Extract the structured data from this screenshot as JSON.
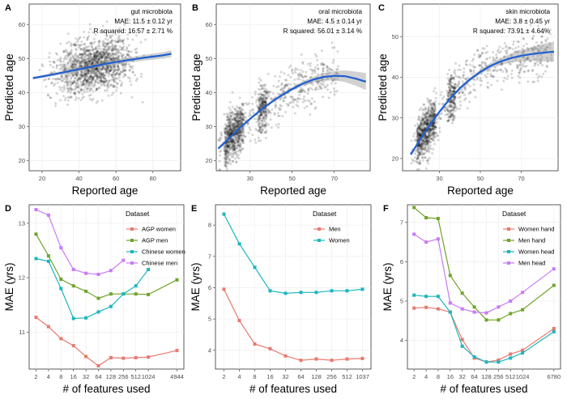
{
  "chart_data": [
    {
      "panel": "A",
      "type": "scatter",
      "annotation": [
        "gut microbiota",
        "MAE: 11.5 ± 0.12 yr",
        "R squared: 16.57 ± 2.71 %"
      ],
      "xlabel": "Reported age",
      "ylabel": "Predicted age",
      "xlim": [
        13,
        95
      ],
      "ylim": [
        17,
        66
      ],
      "xticks": [
        20,
        40,
        60,
        80
      ],
      "yticks": [
        20,
        30,
        40,
        50,
        60
      ],
      "trend": {
        "x": [
          15,
          25,
          35,
          45,
          55,
          65,
          75,
          85,
          90
        ],
        "y": [
          44.2,
          45.2,
          46.3,
          47.4,
          48.5,
          49.4,
          50.2,
          50.9,
          51.4
        ]
      },
      "cloud": {
        "x_range": [
          18,
          90
        ],
        "x_center": 48,
        "y_spread": 5.5,
        "count": 1400
      }
    },
    {
      "panel": "B",
      "type": "scatter",
      "annotation": [
        "oral microbiota",
        "MAE: 4.5 ± 0.14 yr",
        "R squared: 56.01 ± 3.14 %"
      ],
      "xlabel": "Reported age",
      "ylabel": "Predicted age",
      "xlim": [
        14,
        87
      ],
      "ylim": [
        17,
        66
      ],
      "xticks": [
        30,
        50,
        70
      ],
      "yticks": [
        20,
        30,
        40,
        50,
        60
      ],
      "trend": {
        "x": [
          15,
          20,
          25,
          30,
          35,
          40,
          45,
          50,
          55,
          60,
          65,
          70,
          75,
          80,
          85
        ],
        "y": [
          23.5,
          26.5,
          29.5,
          32.2,
          34.8,
          37.1,
          39.2,
          41,
          42.6,
          43.8,
          44.6,
          44.9,
          44.8,
          44.1,
          43.2
        ]
      },
      "cloud": {
        "x_range": [
          15,
          72
        ],
        "x_center": 24,
        "y_spread": 5.0,
        "count": 1300
      }
    },
    {
      "panel": "C",
      "type": "scatter",
      "annotation": [
        "skin microbiota",
        "MAE: 3.8 ± 0.45 yr",
        "R squared: 73.91 ± 4.64%"
      ],
      "xlabel": "Reported age",
      "ylabel": "Predicted age",
      "xlim": [
        12,
        88
      ],
      "ylim": [
        17,
        58
      ],
      "xticks": [
        30,
        50,
        70
      ],
      "yticks": [
        20,
        30,
        40,
        50
      ],
      "trend": {
        "x": [
          16,
          20,
          25,
          30,
          35,
          40,
          45,
          50,
          55,
          60,
          65,
          70,
          75,
          80,
          86
        ],
        "y": [
          21,
          24.2,
          28,
          31.5,
          34.6,
          37.3,
          39.5,
          41.3,
          42.8,
          43.9,
          44.7,
          45.3,
          45.7,
          46,
          46.3
        ]
      },
      "cloud": {
        "x_range": [
          16,
          85
        ],
        "x_center": 22,
        "y_spread": 4.0,
        "count": 1300
      }
    },
    {
      "panel": "D",
      "type": "line",
      "xlabel": "# of features used",
      "ylabel": "MAE (yrs)",
      "categories": [
        "2",
        "4",
        "8",
        "16",
        "32",
        "64",
        "128",
        "256",
        "512",
        "1024",
        "4944"
      ],
      "cat_pos": [
        1,
        2,
        3,
        4,
        5,
        6,
        7,
        8,
        9,
        10,
        12.3
      ],
      "ylim": [
        10.32,
        13.34
      ],
      "yticks": [
        11,
        12,
        13
      ],
      "legend_title": "Dataset",
      "series": [
        {
          "name": "AGP women",
          "color": "#e8796d",
          "values": [
            11.27,
            11.1,
            10.88,
            10.75,
            10.55,
            10.38,
            10.53,
            10.52,
            10.53,
            10.54,
            10.66
          ]
        },
        {
          "name": "AGP men",
          "color": "#6fa52a",
          "values": [
            12.8,
            12.4,
            11.97,
            11.85,
            11.75,
            11.62,
            11.7,
            11.7,
            11.7,
            11.69,
            11.96
          ]
        },
        {
          "name": "Chinese women",
          "color": "#1db6bf",
          "values": [
            12.35,
            12.3,
            11.8,
            11.25,
            11.26,
            11.37,
            11.47,
            11.7,
            11.85,
            12.15,
            null
          ]
        },
        {
          "name": "Chinese men",
          "color": "#c77bf5",
          "values": [
            13.25,
            13.15,
            12.55,
            12.15,
            12.08,
            12.06,
            12.13,
            12.32,
            null,
            null,
            null
          ]
        }
      ]
    },
    {
      "panel": "E",
      "type": "line",
      "xlabel": "# of features used",
      "ylabel": "MAE (yrs)",
      "categories": [
        "2",
        "4",
        "8",
        "16",
        "32",
        "64",
        "128",
        "256",
        "512",
        "1037"
      ],
      "cat_pos": [
        1,
        2,
        3,
        4,
        5,
        6,
        7,
        8,
        9,
        10
      ],
      "ylim": [
        3.4,
        8.65
      ],
      "yticks": [
        4,
        5,
        6,
        7,
        8
      ],
      "legend_title": "Dataset",
      "series": [
        {
          "name": "Men",
          "color": "#e8796d",
          "values": [
            5.95,
            4.95,
            4.2,
            4.05,
            3.82,
            3.68,
            3.72,
            3.68,
            3.72,
            3.74
          ]
        },
        {
          "name": "Women",
          "color": "#1db6bf",
          "values": [
            8.35,
            7.4,
            6.65,
            5.9,
            5.82,
            5.85,
            5.85,
            5.9,
            5.9,
            5.95
          ]
        }
      ]
    },
    {
      "panel": "F",
      "type": "line",
      "xlabel": "# of features used",
      "ylabel": "MAE (yrs)",
      "categories": [
        "2",
        "4",
        "8",
        "16",
        "32",
        "64",
        "128",
        "256",
        "512",
        "1024",
        "6780"
      ],
      "cat_pos": [
        1,
        2,
        3,
        4,
        5,
        6,
        7,
        8,
        9,
        10,
        12.6
      ],
      "ylim": [
        3.27,
        7.45
      ],
      "yticks": [
        4,
        5,
        6,
        7
      ],
      "legend_title": "Dataset",
      "series": [
        {
          "name": "Women hand",
          "color": "#e8796d",
          "values": [
            4.82,
            4.84,
            4.8,
            4.72,
            4.02,
            3.55,
            3.45,
            3.5,
            3.65,
            3.75,
            4.3
          ]
        },
        {
          "name": "Men hand",
          "color": "#6fa52a",
          "values": [
            7.38,
            7.12,
            7.1,
            5.65,
            5.2,
            4.85,
            4.52,
            4.52,
            4.68,
            4.78,
            5.4
          ]
        },
        {
          "name": "Women head",
          "color": "#1db6bf",
          "values": [
            5.15,
            5.12,
            5.12,
            4.72,
            3.85,
            3.58,
            3.45,
            3.45,
            3.55,
            3.68,
            4.22
          ]
        },
        {
          "name": "Men head",
          "color": "#c77bf5",
          "values": [
            6.7,
            6.5,
            6.58,
            4.95,
            4.8,
            4.72,
            4.7,
            4.85,
            5.0,
            5.22,
            5.82
          ]
        }
      ]
    }
  ]
}
